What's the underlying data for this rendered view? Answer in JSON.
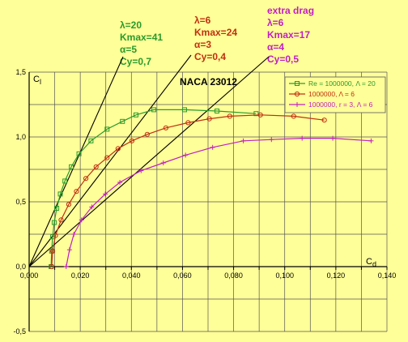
{
  "chart_data": {
    "type": "line",
    "title": "NACA 23012",
    "xlabel": "Cd",
    "ylabel": "Cl",
    "xlim": [
      0,
      0.14
    ],
    "ylim": [
      -0.5,
      1.5
    ],
    "grid": true,
    "legend_position": "top-right",
    "x_ticks": [
      "0,000",
      "0,020",
      "0,040",
      "0,060",
      "0,080",
      "0,100",
      "0,120",
      "0,140"
    ],
    "y_ticks": [
      "-0,5",
      "0,0",
      "0,5",
      "1,0",
      "1,5"
    ],
    "series": [
      {
        "name": "Re = 1000000, Λ = 20",
        "color": "#2a9a2a",
        "marker": "square",
        "x": [
          0.0086,
          0.0088,
          0.0092,
          0.0098,
          0.0108,
          0.0122,
          0.014,
          0.0165,
          0.0195,
          0.0242,
          0.0305,
          0.0365,
          0.0418,
          0.0488,
          0.0608,
          0.0735,
          0.0888
        ],
        "y": [
          0.0,
          0.12,
          0.23,
          0.34,
          0.45,
          0.56,
          0.66,
          0.77,
          0.87,
          0.97,
          1.06,
          1.12,
          1.17,
          1.21,
          1.21,
          1.2,
          1.18
        ]
      },
      {
        "name": "1000000, Λ = 6",
        "color": "#c03010",
        "marker": "circle",
        "x": [
          0.0088,
          0.0092,
          0.0103,
          0.0125,
          0.0155,
          0.0185,
          0.0222,
          0.0262,
          0.0305,
          0.0348,
          0.0402,
          0.0462,
          0.0535,
          0.0622,
          0.0705,
          0.0785,
          0.0905,
          0.1035,
          0.1155
        ],
        "y": [
          0.0,
          0.12,
          0.24,
          0.36,
          0.48,
          0.58,
          0.68,
          0.77,
          0.84,
          0.91,
          0.97,
          1.02,
          1.07,
          1.11,
          1.14,
          1.16,
          1.17,
          1.16,
          1.13
        ]
      },
      {
        "name": "1000000, r = 3, Λ = 6",
        "color": "#c020c0",
        "marker": "plus",
        "x": [
          0.0145,
          0.0158,
          0.0175,
          0.0205,
          0.0245,
          0.0298,
          0.0355,
          0.0438,
          0.0525,
          0.0612,
          0.0718,
          0.0838,
          0.0948,
          0.1068,
          0.1188,
          0.1338
        ],
        "y": [
          0.0,
          0.13,
          0.25,
          0.36,
          0.46,
          0.56,
          0.65,
          0.74,
          0.8,
          0.86,
          0.92,
          0.97,
          0.98,
          0.99,
          0.99,
          0.97
        ]
      }
    ],
    "tangent_lines": [
      {
        "slope": 41,
        "color": "#000000"
      },
      {
        "slope": 24,
        "color": "#000000"
      },
      {
        "slope": 17,
        "color": "#000000"
      }
    ]
  },
  "annotations": [
    {
      "lines": [
        "λ=20",
        "Kmax=41",
        "α=5",
        "Cy=0,7"
      ],
      "color": "#2a9a2a"
    },
    {
      "lines": [
        "λ=6",
        "Kmax=24",
        "α=3",
        "Cy=0,4"
      ],
      "color": "#c03010"
    },
    {
      "lines": [
        "extra drag",
        "λ=6",
        "Kmax=17",
        "α=4",
        "Cy=0,5"
      ],
      "color": "#c020c0"
    }
  ]
}
